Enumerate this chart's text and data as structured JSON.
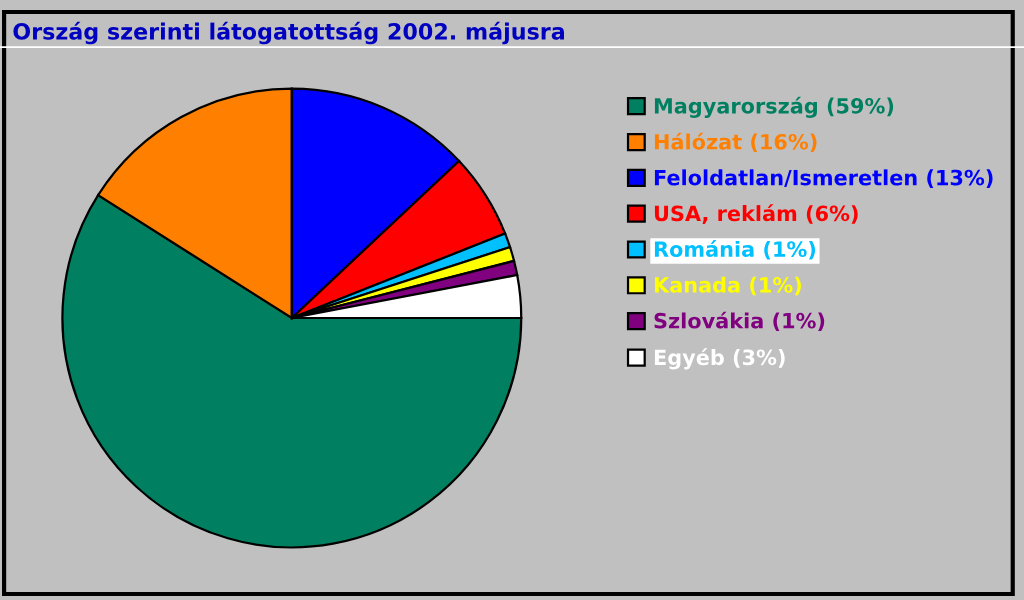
{
  "chart_data": {
    "type": "pie",
    "title": "Ország szerinti látogatottság 2002. májusra",
    "categories": [
      "Magyarország (59%)",
      "Hálózat (16%)",
      "Feloldatlan/Ismeretlen (13%)",
      "USA, reklám (6%)",
      "Románia (1%)",
      "Kanada (1%)",
      "Szlovákia (1%)",
      "Egyéb (3%)"
    ],
    "values": [
      59,
      16,
      13,
      6,
      1,
      1,
      1,
      3
    ],
    "colors": [
      "#008060",
      "#ff8000",
      "#0000ff",
      "#ff0000",
      "#00c0ff",
      "#ffff00",
      "#800080",
      "#ffffff"
    ],
    "legend": "right"
  }
}
